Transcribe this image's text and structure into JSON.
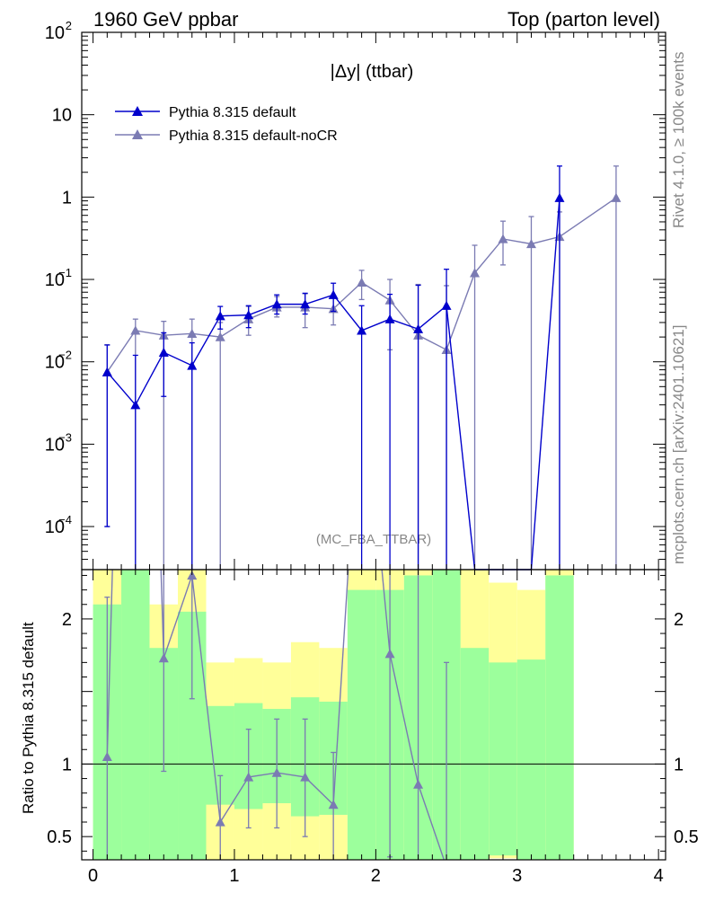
{
  "header": {
    "left_title": "1960 GeV ppbar",
    "right_title": "Top (parton level)"
  },
  "side": {
    "rivet": "Rivet 4.1.0, ≥ 100k events",
    "mcplots": "mcplots.cern.ch [arXiv:2401.10621]"
  },
  "colors": {
    "default": "#0000cc",
    "nocr": "#7b7bb3",
    "band_green": "#9cff9c",
    "band_yellow": "#ffff99"
  },
  "chart_data": {
    "type": "line",
    "title": "|Δy| (ttbar)",
    "analysis": "(MC_FBA_TTBAR)",
    "xlabel": "",
    "ylabel": "",
    "ratio_ylabel": "Ratio to Pythia 8.315 default",
    "xlim": [
      -0.08,
      4.05
    ],
    "ylim_log": [
      3e-05,
      100
    ],
    "ratio_ylim": [
      0.34,
      2.34
    ],
    "x_ticks": [
      "0",
      "1",
      "2",
      "3",
      "4"
    ],
    "y_ticks": [
      {
        "base": "10",
        "exp": "2",
        "value": 100
      },
      {
        "base": "10",
        "exp": "",
        "value": 10
      },
      {
        "base": "1",
        "exp": "",
        "value": 1
      },
      {
        "base": "10",
        "exp": "−1",
        "value": 0.1
      },
      {
        "base": "10",
        "exp": "−2",
        "value": 0.01
      },
      {
        "base": "10",
        "exp": "−3",
        "value": 0.001
      },
      {
        "base": "10",
        "exp": "−4",
        "value": 0.0001
      }
    ],
    "ratio_ticks": [
      "0.5",
      "1",
      "2"
    ],
    "bins": [
      0.1,
      0.3,
      0.5,
      0.7,
      0.9,
      1.1,
      1.3,
      1.5,
      1.7,
      1.9,
      2.1,
      2.3,
      2.5,
      2.7,
      2.9,
      3.1,
      3.3,
      3.5,
      3.7,
      3.9
    ],
    "series": [
      {
        "name": "Pythia 8.315 default",
        "x": [
          0.1,
          0.3,
          0.5,
          0.7,
          0.9,
          1.1,
          1.3,
          1.5,
          1.7,
          1.9,
          2.1,
          2.3,
          2.5,
          2.7,
          2.9,
          3.1,
          3.3
        ],
        "y": [
          0.0075,
          0.003,
          0.013,
          0.009,
          0.036,
          0.037,
          0.05,
          0.05,
          0.065,
          0.024,
          0.033,
          0.025,
          0.048,
          1e-05,
          1e-05,
          1e-05,
          0.98
        ],
        "err_lo": [
          0.0074,
          0.003,
          0.0092,
          0.009,
          0.011,
          0.011,
          0.012,
          0.012,
          0.024,
          0.024,
          0.033,
          0.025,
          0.048,
          0,
          0,
          0,
          0.98
        ],
        "err_hi": [
          0.0085,
          0.009,
          0.0095,
          0.008,
          0.011,
          0.011,
          0.015,
          0.018,
          0.025,
          0.024,
          0.033,
          0.06,
          0.085,
          0,
          0,
          0,
          1.4
        ]
      },
      {
        "name": "Pythia 8.315 default-noCR",
        "x": [
          0.1,
          0.3,
          0.5,
          0.7,
          0.9,
          1.1,
          1.3,
          1.5,
          1.7,
          1.9,
          2.1,
          2.3,
          2.5,
          2.7,
          2.9,
          3.1,
          3.3,
          3.7
        ],
        "y": [
          0.0075,
          0.024,
          0.021,
          0.022,
          0.02,
          0.033,
          0.046,
          0.046,
          0.044,
          0.092,
          0.056,
          0.021,
          0.014,
          0.12,
          0.31,
          0.27,
          0.33,
          0.98
        ],
        "err_lo": [
          0.0074,
          0.024,
          0.021,
          0.022,
          0.02,
          0.012,
          0.011,
          0.02,
          0.016,
          0.035,
          0.042,
          0.021,
          0.014,
          0.12,
          0.16,
          0.27,
          0.33,
          0.98
        ],
        "err_hi": [
          0.0086,
          0.009,
          0.01,
          0.011,
          0.01,
          0.014,
          0.016,
          0.021,
          0.018,
          0.037,
          0.044,
          0.066,
          0.07,
          0.14,
          0.2,
          0.31,
          0.33,
          1.4
        ]
      }
    ],
    "ratio": {
      "band_bins": [
        {
          "x0": 0.0,
          "x1": 0.2,
          "green": [
            0.2,
            2.1
          ],
          "yellow": [
            0.2,
            2.5
          ]
        },
        {
          "x0": 0.2,
          "x1": 0.4,
          "green": [
            0.2,
            2.5
          ],
          "yellow": [
            0.2,
            2.5
          ]
        },
        {
          "x0": 0.4,
          "x1": 0.6,
          "green": [
            0.2,
            1.8
          ],
          "yellow": [
            0.2,
            2.1
          ]
        },
        {
          "x0": 0.6,
          "x1": 0.8,
          "green": [
            0.2,
            2.05
          ],
          "yellow": [
            0.2,
            2.5
          ]
        },
        {
          "x0": 0.8,
          "x1": 1.0,
          "green": [
            0.72,
            1.4
          ],
          "yellow": [
            0.2,
            1.7
          ]
        },
        {
          "x0": 1.0,
          "x1": 1.2,
          "green": [
            0.69,
            1.42
          ],
          "yellow": [
            0.2,
            1.73
          ]
        },
        {
          "x0": 1.2,
          "x1": 1.4,
          "green": [
            0.73,
            1.38
          ],
          "yellow": [
            0.2,
            1.7
          ]
        },
        {
          "x0": 1.4,
          "x1": 1.6,
          "green": [
            0.64,
            1.46
          ],
          "yellow": [
            0.2,
            1.84
          ]
        },
        {
          "x0": 1.6,
          "x1": 1.8,
          "green": [
            0.65,
            1.43
          ],
          "yellow": [
            0.2,
            1.8
          ]
        },
        {
          "x0": 1.8,
          "x1": 2.0,
          "green": [
            0.2,
            2.2
          ],
          "yellow": [
            0.2,
            2.5
          ]
        },
        {
          "x0": 2.0,
          "x1": 2.2,
          "green": [
            0.2,
            2.2
          ],
          "yellow": [
            0.2,
            2.5
          ]
        },
        {
          "x0": 2.2,
          "x1": 2.4,
          "green": [
            0.2,
            2.3
          ],
          "yellow": [
            0.2,
            2.5
          ]
        },
        {
          "x0": 2.4,
          "x1": 2.6,
          "green": [
            0.2,
            2.5
          ],
          "yellow": [
            0.2,
            2.5
          ]
        },
        {
          "x0": 2.6,
          "x1": 2.8,
          "green": [
            0.2,
            1.8
          ],
          "yellow": [
            0.2,
            2.5
          ]
        },
        {
          "x0": 2.8,
          "x1": 3.0,
          "green": [
            0.37,
            1.7
          ],
          "yellow": [
            0.35,
            2.25
          ]
        },
        {
          "x0": 3.0,
          "x1": 3.2,
          "green": [
            0.2,
            1.72
          ],
          "yellow": [
            0.2,
            2.2
          ]
        },
        {
          "x0": 3.2,
          "x1": 3.4,
          "green": [
            0.2,
            2.3
          ],
          "yellow": [
            0.2,
            2.5
          ]
        }
      ],
      "nocr_points": [
        {
          "x": 0.1,
          "y": 1.05,
          "lo": 0.2,
          "hi": 2.15
        },
        {
          "x": 0.3,
          "y": 8.0,
          "lo": 2.5,
          "hi": 9.0
        },
        {
          "x": 0.5,
          "y": 1.73,
          "lo": 0.95,
          "hi": 2.45
        },
        {
          "x": 0.7,
          "y": 2.3,
          "lo": 1.45,
          "hi": 2.5
        },
        {
          "x": 0.9,
          "y": 0.6,
          "lo": 0.2,
          "hi": 0.92
        },
        {
          "x": 1.1,
          "y": 0.91,
          "lo": 0.56,
          "hi": 1.24
        },
        {
          "x": 1.3,
          "y": 0.94,
          "lo": 0.56,
          "hi": 1.31
        },
        {
          "x": 1.5,
          "y": 0.91,
          "lo": 0.5,
          "hi": 1.31
        },
        {
          "x": 1.7,
          "y": 0.72,
          "lo": 0.2,
          "hi": 1.08
        },
        {
          "x": 1.9,
          "y": 3.8,
          "lo": 2.5,
          "hi": 5.0
        },
        {
          "x": 2.1,
          "y": 1.76,
          "lo": 0.36,
          "hi": 3.1
        },
        {
          "x": 2.3,
          "y": 0.86,
          "lo": 0.2,
          "hi": 3.5
        },
        {
          "x": 2.5,
          "y": 0.29,
          "lo": 0.2,
          "hi": 1.7
        }
      ]
    }
  }
}
